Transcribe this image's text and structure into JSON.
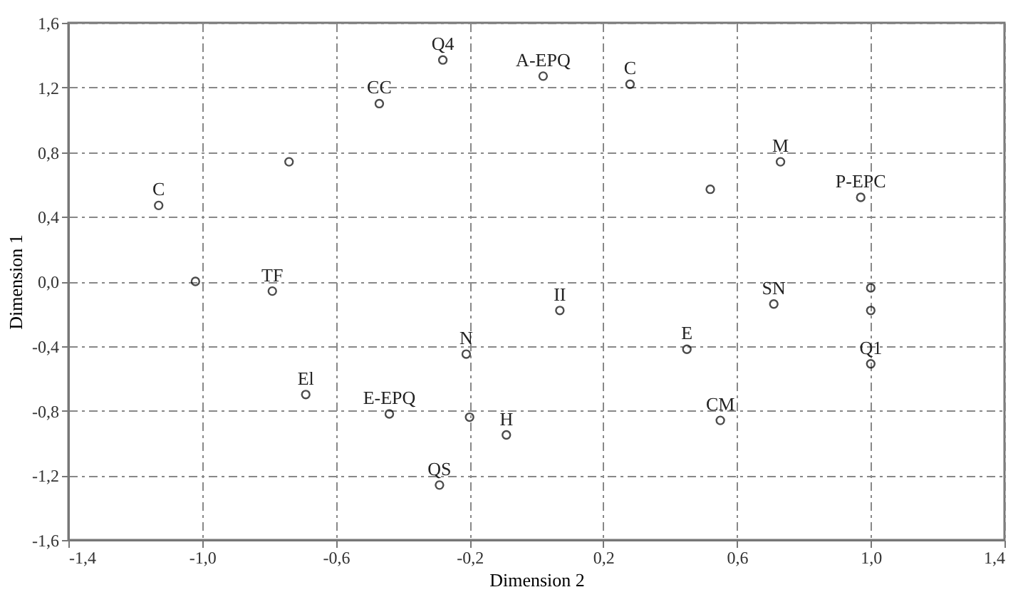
{
  "chart_data": {
    "type": "scatter",
    "xlabel": "Dimension 2",
    "ylabel": "Dimension 1",
    "x": [
      -0.28,
      -0.47,
      0.02,
      0.28,
      -0.74,
      -1.13,
      -0.79,
      -1.02,
      -0.69,
      -0.44,
      -0.21,
      -0.2,
      -0.09,
      -0.29,
      0.07,
      0.45,
      0.55,
      0.52,
      0.73,
      0.97,
      0.71,
      1.0,
      1.0,
      1.0
    ],
    "series": [
      {
        "color": "#000000",
        "values": [
          1.37,
          1.1,
          1.27,
          1.22,
          0.74,
          0.47,
          -0.06,
          0.0,
          -0.7,
          -0.82,
          -0.45,
          -0.84,
          -0.95,
          -1.26,
          -0.18,
          -0.42,
          -0.86,
          0.57,
          0.74,
          0.52,
          -0.14,
          -0.04,
          -0.18,
          -0.51
        ]
      }
    ],
    "marker": "circle",
    "xlim": [
      -1.4,
      1.4
    ],
    "xticks": [
      {
        "value": -1.4,
        "label": "-1,4"
      },
      {
        "value": -1.0,
        "label": "-1,0"
      },
      {
        "value": -0.6,
        "label": "-0,6"
      },
      {
        "value": -0.2,
        "label": "-0,2"
      },
      {
        "value": 0.2,
        "label": "0,2"
      },
      {
        "value": 0.6,
        "label": "0,6"
      },
      {
        "value": 1.0,
        "label": "1,0"
      },
      {
        "value": 1.4,
        "label": "1,4"
      }
    ],
    "ylim": [
      -1.6,
      1.6
    ],
    "yticks": [
      {
        "value": -1.6,
        "label": "-1,6"
      },
      {
        "value": -1.2,
        "label": "-1,2"
      },
      {
        "value": -0.8,
        "label": "-0,8"
      },
      {
        "value": -0.4,
        "label": "-0,4"
      },
      {
        "value": 0.0,
        "label": "0,0"
      },
      {
        "value": 0.4,
        "label": "0,4"
      },
      {
        "value": 0.8,
        "label": "0,8"
      },
      {
        "value": 1.2,
        "label": "1,2"
      },
      {
        "value": 1.6,
        "label": "1,6"
      }
    ],
    "grid": true,
    "annotations": [
      {
        "text": "Q4",
        "x": -0.28,
        "y": 1.37
      },
      {
        "text": "CC",
        "x": -0.47,
        "y": 1.1
      },
      {
        "text": "A-EPQ",
        "x": 0.02,
        "y": 1.27
      },
      {
        "text": "C",
        "x": 0.28,
        "y": 1.22
      },
      {
        "text": "C",
        "x": -1.13,
        "y": 0.47
      },
      {
        "text": "TF",
        "x": -0.79,
        "y": -0.06
      },
      {
        "text": "El",
        "x": -0.69,
        "y": -0.7
      },
      {
        "text": "E-EPQ",
        "x": -0.44,
        "y": -0.82
      },
      {
        "text": "N",
        "x": -0.21,
        "y": -0.45
      },
      {
        "text": "H",
        "x": -0.09,
        "y": -0.95
      },
      {
        "text": "QS",
        "x": -0.29,
        "y": -1.26
      },
      {
        "text": "II",
        "x": 0.07,
        "y": -0.18
      },
      {
        "text": "E",
        "x": 0.45,
        "y": -0.42
      },
      {
        "text": "CM",
        "x": 0.55,
        "y": -0.86
      },
      {
        "text": "M",
        "x": 0.73,
        "y": 0.74
      },
      {
        "text": "P-EPC",
        "x": 0.97,
        "y": 0.52
      },
      {
        "text": "SN",
        "x": 0.71,
        "y": -0.14
      },
      {
        "text": "Q1",
        "x": 1.0,
        "y": -0.51
      }
    ]
  }
}
